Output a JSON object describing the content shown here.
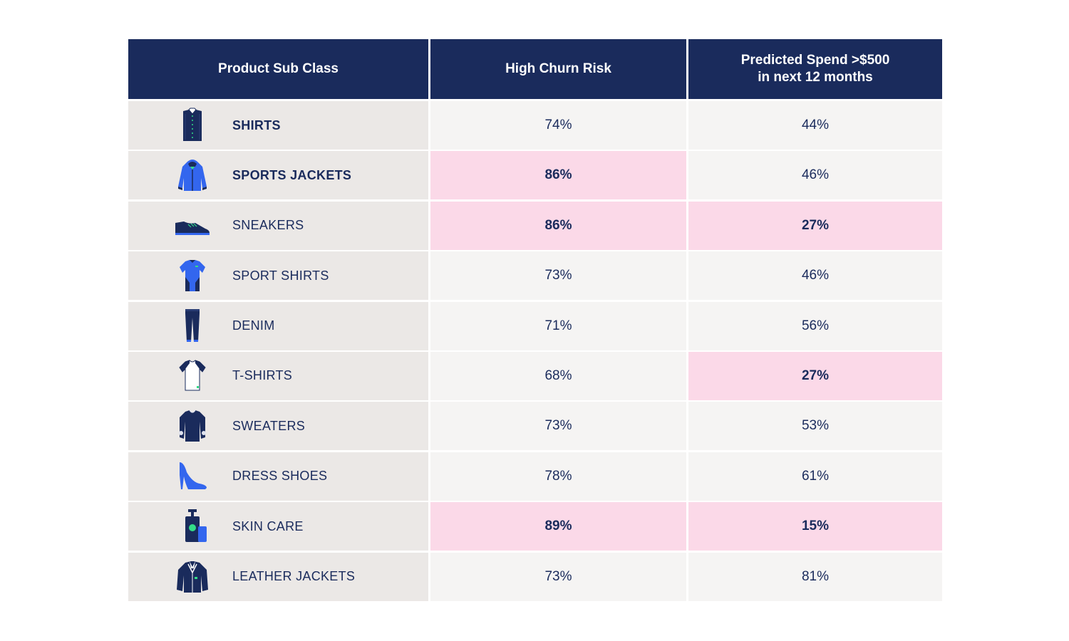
{
  "colors": {
    "header_bg": "#1a2b5c",
    "header_text": "#ffffff",
    "product_cell_bg": "#ebe8e6",
    "value_cell_bg": "#f5f4f3",
    "highlight_bg": "#fbd9e8",
    "text": "#1a2b5c",
    "icon_navy": "#1a2b5c",
    "icon_blue": "#3366ee",
    "icon_green": "#33dd88"
  },
  "chart_data": {
    "type": "table",
    "columns": [
      "Product Sub Class",
      "High Churn Risk",
      "Predicted Spend >$500\nin next 12 months"
    ],
    "rows": [
      {
        "product": "SHIRTS",
        "icon": "shirt-icon",
        "churn": "74%",
        "spend": "44%",
        "churn_highlight": false,
        "spend_highlight": false,
        "bold": true
      },
      {
        "product": "SPORTS JACKETS",
        "icon": "sports-jacket-icon",
        "churn": "86%",
        "spend": "46%",
        "churn_highlight": true,
        "spend_highlight": false,
        "bold": true
      },
      {
        "product": "SNEAKERS",
        "icon": "sneaker-icon",
        "churn": "86%",
        "spend": "27%",
        "churn_highlight": true,
        "spend_highlight": true,
        "bold": false
      },
      {
        "product": "SPORT SHIRTS",
        "icon": "sport-shirt-icon",
        "churn": "73%",
        "spend": "46%",
        "churn_highlight": false,
        "spend_highlight": false,
        "bold": false
      },
      {
        "product": "DENIM",
        "icon": "denim-icon",
        "churn": "71%",
        "spend": "56%",
        "churn_highlight": false,
        "spend_highlight": false,
        "bold": false
      },
      {
        "product": "T-SHIRTS",
        "icon": "t-shirt-icon",
        "churn": "68%",
        "spend": "27%",
        "churn_highlight": false,
        "spend_highlight": true,
        "bold": false
      },
      {
        "product": "SWEATERS",
        "icon": "sweater-icon",
        "churn": "73%",
        "spend": "53%",
        "churn_highlight": false,
        "spend_highlight": false,
        "bold": false
      },
      {
        "product": "DRESS SHOES",
        "icon": "dress-shoe-icon",
        "churn": "78%",
        "spend": "61%",
        "churn_highlight": false,
        "spend_highlight": false,
        "bold": false
      },
      {
        "product": "SKIN CARE",
        "icon": "skin-care-icon",
        "churn": "89%",
        "spend": "15%",
        "churn_highlight": true,
        "spend_highlight": true,
        "bold": false
      },
      {
        "product": "LEATHER JACKETS",
        "icon": "leather-jacket-icon",
        "churn": "73%",
        "spend": "81%",
        "churn_highlight": false,
        "spend_highlight": false,
        "bold": false
      }
    ]
  }
}
